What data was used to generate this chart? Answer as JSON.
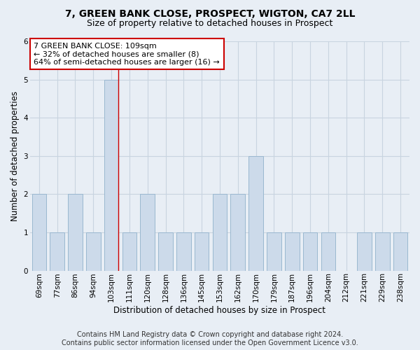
{
  "title_line1": "7, GREEN BANK CLOSE, PROSPECT, WIGTON, CA7 2LL",
  "title_line2": "Size of property relative to detached houses in Prospect",
  "xlabel": "Distribution of detached houses by size in Prospect",
  "ylabel": "Number of detached properties",
  "categories": [
    "69sqm",
    "77sqm",
    "86sqm",
    "94sqm",
    "103sqm",
    "111sqm",
    "120sqm",
    "128sqm",
    "136sqm",
    "145sqm",
    "153sqm",
    "162sqm",
    "170sqm",
    "179sqm",
    "187sqm",
    "196sqm",
    "204sqm",
    "212sqm",
    "221sqm",
    "229sqm",
    "238sqm"
  ],
  "values": [
    2,
    1,
    2,
    1,
    5,
    1,
    2,
    1,
    1,
    1,
    2,
    2,
    3,
    1,
    1,
    1,
    1,
    0,
    1,
    1,
    1
  ],
  "bar_color": "#ccdaea",
  "bar_edge_color": "#9ab8d0",
  "highlight_index": 4,
  "highlight_line_color": "#cc0000",
  "ylim": [
    0,
    6
  ],
  "yticks": [
    0,
    1,
    2,
    3,
    4,
    5,
    6
  ],
  "annotation_box_text": "7 GREEN BANK CLOSE: 109sqm\n← 32% of detached houses are smaller (8)\n64% of semi-detached houses are larger (16) →",
  "annotation_box_color": "#ffffff",
  "annotation_box_edge_color": "#cc0000",
  "footer_line1": "Contains HM Land Registry data © Crown copyright and database right 2024.",
  "footer_line2": "Contains public sector information licensed under the Open Government Licence v3.0.",
  "background_color": "#e8eef5",
  "grid_color": "#c8d4e0",
  "title_fontsize": 10,
  "subtitle_fontsize": 9,
  "axis_label_fontsize": 8.5,
  "tick_fontsize": 7.5,
  "annotation_fontsize": 8,
  "footer_fontsize": 7
}
